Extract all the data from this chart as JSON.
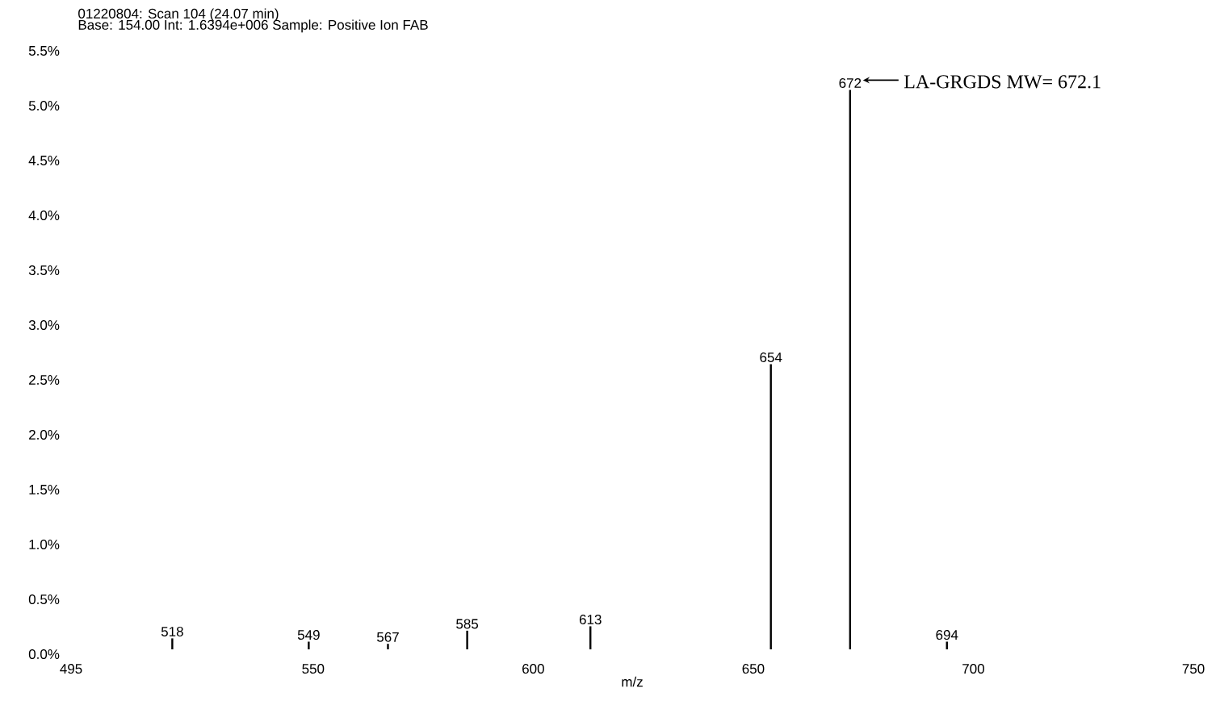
{
  "chart_data": {
    "type": "bar",
    "title": "01220804: Scan  104 (24.07 min)",
    "subtitle": "Base: 154.00  Int: 1.6394e+006  Sample: Positive Ion FAB",
    "xlabel": "m/z",
    "x": [
      518,
      549,
      567,
      585,
      613,
      654,
      672,
      694
    ],
    "values": [
      0.1,
      0.07,
      0.05,
      0.17,
      0.21,
      2.6,
      5.1,
      0.07
    ],
    "color": "#000000",
    "xlim": [
      495,
      750
    ],
    "xticks": [
      495,
      550,
      600,
      650,
      700,
      750
    ],
    "ylim": [
      0,
      5.5
    ],
    "yticks": [
      {
        "value": 0,
        "label": "0.0%"
      },
      {
        "value": 0.5,
        "label": "0.5%"
      },
      {
        "value": 1,
        "label": "1.0%"
      },
      {
        "value": 1.5,
        "label": "1.5%"
      },
      {
        "value": 2,
        "label": "2.0%"
      },
      {
        "value": 2.5,
        "label": "2.5%"
      },
      {
        "value": 3,
        "label": "3.0%"
      },
      {
        "value": 3.5,
        "label": "3.5%"
      },
      {
        "value": 4,
        "label": "4.0%"
      },
      {
        "value": 4.5,
        "label": "4.5%"
      },
      {
        "value": 5,
        "label": "5.0%"
      },
      {
        "value": 5.5,
        "label": "5.5%"
      }
    ],
    "annotations": [
      {
        "text": "518",
        "x": 518,
        "y": 0.1
      },
      {
        "text": "549",
        "x": 549,
        "y": 0.07
      },
      {
        "text": "567",
        "x": 567,
        "y": 0.05
      },
      {
        "text": "585",
        "x": 585,
        "y": 0.17
      },
      {
        "text": "613",
        "x": 613,
        "y": 0.21
      },
      {
        "text": "654",
        "x": 654,
        "y": 2.6
      },
      {
        "text": "672",
        "x": 672,
        "y": 5.1
      },
      {
        "text": "694",
        "x": 694,
        "y": 0.07
      },
      {
        "text": "LA-GRGDS MW= 672.1",
        "x": 672,
        "y": 5.1
      }
    ]
  }
}
